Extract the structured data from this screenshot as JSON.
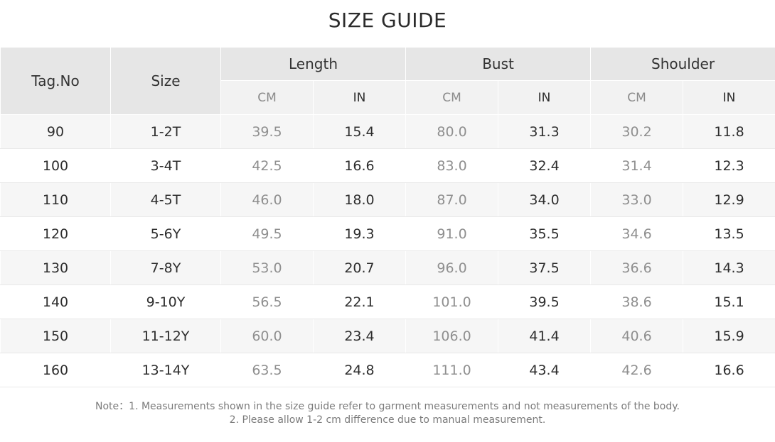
{
  "title": "SIZE GUIDE",
  "table": {
    "col_tag": "Tag.No",
    "col_size": "Size",
    "groups": [
      {
        "label": "Length",
        "cm": "CM",
        "in": "IN"
      },
      {
        "label": "Bust",
        "cm": "CM",
        "in": "IN"
      },
      {
        "label": "Shoulder",
        "cm": "CM",
        "in": "IN"
      }
    ],
    "rows": [
      {
        "tag": "90",
        "size": "1-2T",
        "length_cm": "39.5",
        "length_in": "15.4",
        "bust_cm": "80.0",
        "bust_in": "31.3",
        "shoulder_cm": "30.2",
        "shoulder_in": "11.8"
      },
      {
        "tag": "100",
        "size": "3-4T",
        "length_cm": "42.5",
        "length_in": "16.6",
        "bust_cm": "83.0",
        "bust_in": "32.4",
        "shoulder_cm": "31.4",
        "shoulder_in": "12.3"
      },
      {
        "tag": "110",
        "size": "4-5T",
        "length_cm": "46.0",
        "length_in": "18.0",
        "bust_cm": "87.0",
        "bust_in": "34.0",
        "shoulder_cm": "33.0",
        "shoulder_in": "12.9"
      },
      {
        "tag": "120",
        "size": "5-6Y",
        "length_cm": "49.5",
        "length_in": "19.3",
        "bust_cm": "91.0",
        "bust_in": "35.5",
        "shoulder_cm": "34.6",
        "shoulder_in": "13.5"
      },
      {
        "tag": "130",
        "size": "7-8Y",
        "length_cm": "53.0",
        "length_in": "20.7",
        "bust_cm": "96.0",
        "bust_in": "37.5",
        "shoulder_cm": "36.6",
        "shoulder_in": "14.3"
      },
      {
        "tag": "140",
        "size": "9-10Y",
        "length_cm": "56.5",
        "length_in": "22.1",
        "bust_cm": "101.0",
        "bust_in": "39.5",
        "shoulder_cm": "38.6",
        "shoulder_in": "15.1"
      },
      {
        "tag": "150",
        "size": "11-12Y",
        "length_cm": "60.0",
        "length_in": "23.4",
        "bust_cm": "106.0",
        "bust_in": "41.4",
        "shoulder_cm": "40.6",
        "shoulder_in": "15.9"
      },
      {
        "tag": "160",
        "size": "13-14Y",
        "length_cm": "63.5",
        "length_in": "24.8",
        "bust_cm": "111.0",
        "bust_in": "43.4",
        "shoulder_cm": "42.6",
        "shoulder_in": "16.6"
      }
    ]
  },
  "note": {
    "line1": "Note：1. Measurements shown in the size guide refer to garment measurements and not measurements of the body.",
    "line2": "2. Please allow 1-2 cm difference due to manual measurement."
  },
  "colors": {
    "header_bg": "#e6e6e6",
    "subheader_bg": "#f2f2f2",
    "stripe_bg": "#f6f6f6",
    "cm_text": "#8f8f8f",
    "in_text": "#2e2e2e"
  }
}
